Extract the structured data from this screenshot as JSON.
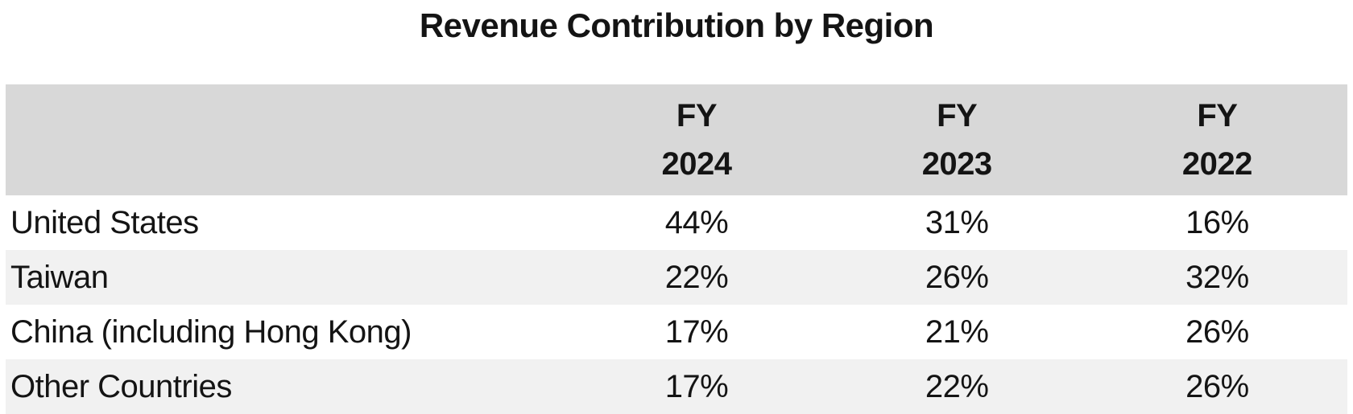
{
  "title": "Revenue Contribution by Region",
  "table": {
    "corner_label": "",
    "columns": [
      {
        "line1": "FY",
        "line2": "2024"
      },
      {
        "line1": "FY",
        "line2": "2023"
      },
      {
        "line1": "FY",
        "line2": "2022"
      }
    ],
    "rows": [
      {
        "label": "United States",
        "values": [
          "44%",
          "31%",
          "16%"
        ]
      },
      {
        "label": "Taiwan",
        "values": [
          "22%",
          "26%",
          "32%"
        ]
      },
      {
        "label": "China (including Hong Kong)",
        "values": [
          "17%",
          "21%",
          "26%"
        ]
      },
      {
        "label": "Other Countries",
        "values": [
          "17%",
          "22%",
          "26%"
        ]
      }
    ]
  },
  "chart_data": {
    "type": "table",
    "title": "Revenue Contribution by Region",
    "categories": [
      "United States",
      "Taiwan",
      "China (including Hong Kong)",
      "Other Countries"
    ],
    "series": [
      {
        "name": "FY 2024",
        "values": [
          "44%",
          "22%",
          "17%",
          "17%"
        ]
      },
      {
        "name": "FY 2023",
        "values": [
          "31%",
          "26%",
          "21%",
          "22%"
        ]
      },
      {
        "name": "FY 2022",
        "values": [
          "16%",
          "32%",
          "26%",
          "26%"
        ]
      }
    ],
    "layout": {
      "header_bg": "#d8d8d8",
      "alt_row_bg": "#f1f1f1",
      "row_bg": "#ffffff",
      "banded_rows": true
    }
  },
  "colors": {
    "header_bg": "#d8d8d8",
    "alt_row_bg": "#f1f1f1",
    "row_bg": "#ffffff",
    "text": "#141414",
    "bottom_border": "#d9d9d9"
  }
}
